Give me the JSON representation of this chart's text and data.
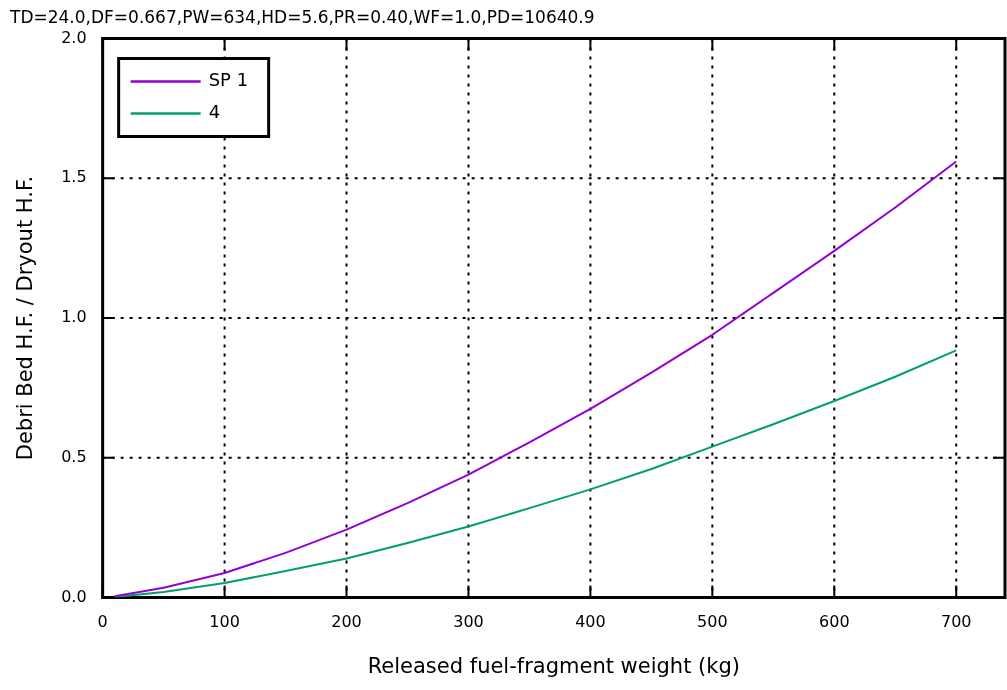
{
  "chart_data": {
    "type": "line",
    "title": "TD=24.0,DF=0.667,PW=634,HD=5.6,PR=0.40,WF=1.0,PD=10640.9",
    "xlabel": "Released fuel-fragment weight (kg)",
    "ylabel": "Debri Bed H.F. / Dryout H.F.",
    "x": [
      10,
      50,
      100,
      150,
      200,
      250,
      300,
      350,
      400,
      450,
      500,
      550,
      600,
      650,
      700
    ],
    "series": [
      {
        "name": "SP 1",
        "color": "#9400d3",
        "values": [
          0.005,
          0.035,
          0.088,
          0.16,
          0.243,
          0.338,
          0.44,
          0.555,
          0.675,
          0.805,
          0.94,
          1.09,
          1.24,
          1.395,
          1.56
        ]
      },
      {
        "name": "4",
        "color": "#009e73",
        "values": [
          0.002,
          0.02,
          0.052,
          0.095,
          0.14,
          0.195,
          0.254,
          0.32,
          0.387,
          0.46,
          0.54,
          0.62,
          0.703,
          0.79,
          0.884
        ]
      }
    ],
    "xlim": [
      0,
      740
    ],
    "xticks": [
      0,
      100,
      200,
      300,
      400,
      500,
      600,
      700
    ],
    "ylim": [
      0,
      2
    ],
    "yticks": [
      {
        "value": 0,
        "label": "0.0"
      },
      {
        "value": 0.5,
        "label": "0.5"
      },
      {
        "value": 1,
        "label": "1.0"
      },
      {
        "value": 1.5,
        "label": "1.5"
      },
      {
        "value": 2,
        "label": "2.0"
      }
    ],
    "grid": true,
    "legend": "top left",
    "line_style": "solid",
    "marker": "none"
  }
}
